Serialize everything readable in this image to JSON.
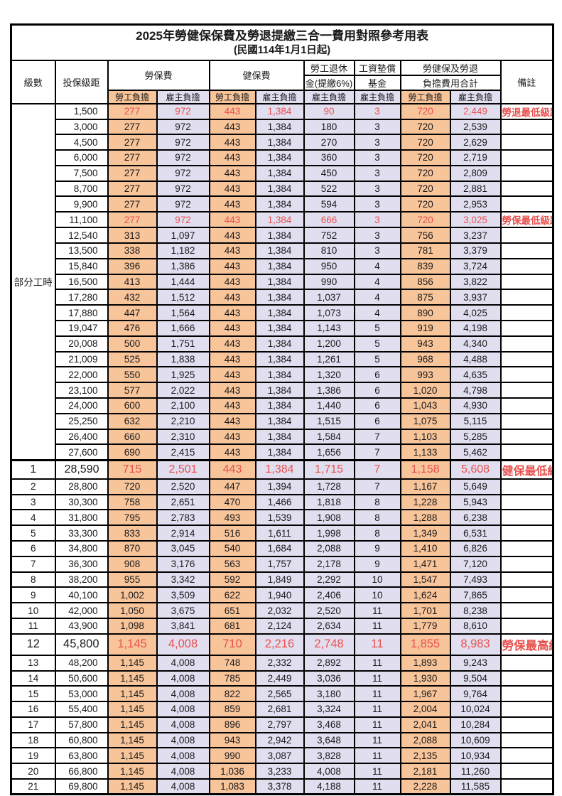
{
  "title": "2025年勞健保保費及勞退提繳三合一費用對照參考用表",
  "subtitle": "(民國114年1月1日起)",
  "colors": {
    "worker_bg": "#F8C49A",
    "employer_bg": "#E1DEF0",
    "highlight_text": "#E8514E",
    "border": "#000000"
  },
  "header": {
    "level": "級數",
    "bracket": "投保級距",
    "labor_ins": "勞保費",
    "health_ins": "健保費",
    "pension_line1": "勞工退休",
    "pension_line2": "金(提繳6%)",
    "wage_fund_line1": "工資墊償",
    "wage_fund_line2": "基金",
    "total_line1": "勞健保及勞退",
    "total_line2": "負擔費用合計",
    "remark": "備註",
    "worker": "勞工負擔",
    "employer": "雇主負擔"
  },
  "part_time_label": "部分工時",
  "part_time_rowspan": 23,
  "rows": [
    {
      "level": "",
      "bracket": "1,500",
      "li_w": "277",
      "li_e": "972",
      "hi_w": "443",
      "hi_e": "1,384",
      "pen_e": "90",
      "fund_e": "3",
      "tot_w": "720",
      "tot_e": "2,449",
      "remark": "勞退最低級距",
      "red": true,
      "big": 0
    },
    {
      "level": "",
      "bracket": "3,000",
      "li_w": "277",
      "li_e": "972",
      "hi_w": "443",
      "hi_e": "1,384",
      "pen_e": "180",
      "fund_e": "3",
      "tot_w": "720",
      "tot_e": "2,539",
      "remark": "",
      "red": false,
      "big": 0
    },
    {
      "level": "",
      "bracket": "4,500",
      "li_w": "277",
      "li_e": "972",
      "hi_w": "443",
      "hi_e": "1,384",
      "pen_e": "270",
      "fund_e": "3",
      "tot_w": "720",
      "tot_e": "2,629",
      "remark": "",
      "red": false,
      "big": 0
    },
    {
      "level": "",
      "bracket": "6,000",
      "li_w": "277",
      "li_e": "972",
      "hi_w": "443",
      "hi_e": "1,384",
      "pen_e": "360",
      "fund_e": "3",
      "tot_w": "720",
      "tot_e": "2,719",
      "remark": "",
      "red": false,
      "big": 0
    },
    {
      "level": "",
      "bracket": "7,500",
      "li_w": "277",
      "li_e": "972",
      "hi_w": "443",
      "hi_e": "1,384",
      "pen_e": "450",
      "fund_e": "3",
      "tot_w": "720",
      "tot_e": "2,809",
      "remark": "",
      "red": false,
      "big": 0
    },
    {
      "level": "",
      "bracket": "8,700",
      "li_w": "277",
      "li_e": "972",
      "hi_w": "443",
      "hi_e": "1,384",
      "pen_e": "522",
      "fund_e": "3",
      "tot_w": "720",
      "tot_e": "2,881",
      "remark": "",
      "red": false,
      "big": 0
    },
    {
      "level": "",
      "bracket": "9,900",
      "li_w": "277",
      "li_e": "972",
      "hi_w": "443",
      "hi_e": "1,384",
      "pen_e": "594",
      "fund_e": "3",
      "tot_w": "720",
      "tot_e": "2,953",
      "remark": "",
      "red": false,
      "big": 0
    },
    {
      "level": "",
      "bracket": "11,100",
      "li_w": "277",
      "li_e": "972",
      "hi_w": "443",
      "hi_e": "1,384",
      "pen_e": "666",
      "fund_e": "3",
      "tot_w": "720",
      "tot_e": "3,025",
      "remark": "勞保最低級距",
      "red": true,
      "big": 0
    },
    {
      "level": "",
      "bracket": "12,540",
      "li_w": "313",
      "li_e": "1,097",
      "hi_w": "443",
      "hi_e": "1,384",
      "pen_e": "752",
      "fund_e": "3",
      "tot_w": "756",
      "tot_e": "3,237",
      "remark": "",
      "red": false,
      "big": 0
    },
    {
      "level": "",
      "bracket": "13,500",
      "li_w": "338",
      "li_e": "1,182",
      "hi_w": "443",
      "hi_e": "1,384",
      "pen_e": "810",
      "fund_e": "3",
      "tot_w": "781",
      "tot_e": "3,379",
      "remark": "",
      "red": false,
      "big": 0
    },
    {
      "level": "",
      "bracket": "15,840",
      "li_w": "396",
      "li_e": "1,386",
      "hi_w": "443",
      "hi_e": "1,384",
      "pen_e": "950",
      "fund_e": "4",
      "tot_w": "839",
      "tot_e": "3,724",
      "remark": "",
      "red": false,
      "big": 0
    },
    {
      "level": "",
      "bracket": "16,500",
      "li_w": "413",
      "li_e": "1,444",
      "hi_w": "443",
      "hi_e": "1,384",
      "pen_e": "990",
      "fund_e": "4",
      "tot_w": "856",
      "tot_e": "3,822",
      "remark": "",
      "red": false,
      "big": 0
    },
    {
      "level": "",
      "bracket": "17,280",
      "li_w": "432",
      "li_e": "1,512",
      "hi_w": "443",
      "hi_e": "1,384",
      "pen_e": "1,037",
      "fund_e": "4",
      "tot_w": "875",
      "tot_e": "3,937",
      "remark": "",
      "red": false,
      "big": 0
    },
    {
      "level": "",
      "bracket": "17,880",
      "li_w": "447",
      "li_e": "1,564",
      "hi_w": "443",
      "hi_e": "1,384",
      "pen_e": "1,073",
      "fund_e": "4",
      "tot_w": "890",
      "tot_e": "4,025",
      "remark": "",
      "red": false,
      "big": 0
    },
    {
      "level": "",
      "bracket": "19,047",
      "li_w": "476",
      "li_e": "1,666",
      "hi_w": "443",
      "hi_e": "1,384",
      "pen_e": "1,143",
      "fund_e": "5",
      "tot_w": "919",
      "tot_e": "4,198",
      "remark": "",
      "red": false,
      "big": 0
    },
    {
      "level": "",
      "bracket": "20,008",
      "li_w": "500",
      "li_e": "1,751",
      "hi_w": "443",
      "hi_e": "1,384",
      "pen_e": "1,200",
      "fund_e": "5",
      "tot_w": "943",
      "tot_e": "4,340",
      "remark": "",
      "red": false,
      "big": 0
    },
    {
      "level": "",
      "bracket": "21,009",
      "li_w": "525",
      "li_e": "1,838",
      "hi_w": "443",
      "hi_e": "1,384",
      "pen_e": "1,261",
      "fund_e": "5",
      "tot_w": "968",
      "tot_e": "4,488",
      "remark": "",
      "red": false,
      "big": 0
    },
    {
      "level": "",
      "bracket": "22,000",
      "li_w": "550",
      "li_e": "1,925",
      "hi_w": "443",
      "hi_e": "1,384",
      "pen_e": "1,320",
      "fund_e": "6",
      "tot_w": "993",
      "tot_e": "4,635",
      "remark": "",
      "red": false,
      "big": 0
    },
    {
      "level": "",
      "bracket": "23,100",
      "li_w": "577",
      "li_e": "2,022",
      "hi_w": "443",
      "hi_e": "1,384",
      "pen_e": "1,386",
      "fund_e": "6",
      "tot_w": "1,020",
      "tot_e": "4,798",
      "remark": "",
      "red": false,
      "big": 0
    },
    {
      "level": "",
      "bracket": "24,000",
      "li_w": "600",
      "li_e": "2,100",
      "hi_w": "443",
      "hi_e": "1,384",
      "pen_e": "1,440",
      "fund_e": "6",
      "tot_w": "1,043",
      "tot_e": "4,930",
      "remark": "",
      "red": false,
      "big": 0
    },
    {
      "level": "",
      "bracket": "25,250",
      "li_w": "632",
      "li_e": "2,210",
      "hi_w": "443",
      "hi_e": "1,384",
      "pen_e": "1,515",
      "fund_e": "6",
      "tot_w": "1,075",
      "tot_e": "5,115",
      "remark": "",
      "red": false,
      "big": 0
    },
    {
      "level": "",
      "bracket": "26,400",
      "li_w": "660",
      "li_e": "2,310",
      "hi_w": "443",
      "hi_e": "1,384",
      "pen_e": "1,584",
      "fund_e": "7",
      "tot_w": "1,103",
      "tot_e": "5,285",
      "remark": "",
      "red": false,
      "big": 0
    },
    {
      "level": "",
      "bracket": "27,600",
      "li_w": "690",
      "li_e": "2,415",
      "hi_w": "443",
      "hi_e": "1,384",
      "pen_e": "1,656",
      "fund_e": "7",
      "tot_w": "1,133",
      "tot_e": "5,462",
      "remark": "",
      "red": false,
      "big": 0
    },
    {
      "level": "1",
      "bracket": "28,590",
      "li_w": "715",
      "li_e": "2,501",
      "hi_w": "443",
      "hi_e": "1,384",
      "pen_e": "1,715",
      "fund_e": "7",
      "tot_w": "1,158",
      "tot_e": "5,608",
      "remark": "健保最低級距",
      "red": true,
      "big": 1
    },
    {
      "level": "2",
      "bracket": "28,800",
      "li_w": "720",
      "li_e": "2,520",
      "hi_w": "447",
      "hi_e": "1,394",
      "pen_e": "1,728",
      "fund_e": "7",
      "tot_w": "1,167",
      "tot_e": "5,649",
      "remark": "",
      "red": false,
      "big": 0
    },
    {
      "level": "3",
      "bracket": "30,300",
      "li_w": "758",
      "li_e": "2,651",
      "hi_w": "470",
      "hi_e": "1,466",
      "pen_e": "1,818",
      "fund_e": "8",
      "tot_w": "1,228",
      "tot_e": "5,943",
      "remark": "",
      "red": false,
      "big": 0
    },
    {
      "level": "4",
      "bracket": "31,800",
      "li_w": "795",
      "li_e": "2,783",
      "hi_w": "493",
      "hi_e": "1,539",
      "pen_e": "1,908",
      "fund_e": "8",
      "tot_w": "1,288",
      "tot_e": "6,238",
      "remark": "",
      "red": false,
      "big": 0
    },
    {
      "level": "5",
      "bracket": "33,300",
      "li_w": "833",
      "li_e": "2,914",
      "hi_w": "516",
      "hi_e": "1,611",
      "pen_e": "1,998",
      "fund_e": "8",
      "tot_w": "1,349",
      "tot_e": "6,531",
      "remark": "",
      "red": false,
      "big": 0
    },
    {
      "level": "6",
      "bracket": "34,800",
      "li_w": "870",
      "li_e": "3,045",
      "hi_w": "540",
      "hi_e": "1,684",
      "pen_e": "2,088",
      "fund_e": "9",
      "tot_w": "1,410",
      "tot_e": "6,826",
      "remark": "",
      "red": false,
      "big": 0
    },
    {
      "level": "7",
      "bracket": "36,300",
      "li_w": "908",
      "li_e": "3,176",
      "hi_w": "563",
      "hi_e": "1,757",
      "pen_e": "2,178",
      "fund_e": "9",
      "tot_w": "1,471",
      "tot_e": "7,120",
      "remark": "",
      "red": false,
      "big": 0
    },
    {
      "level": "8",
      "bracket": "38,200",
      "li_w": "955",
      "li_e": "3,342",
      "hi_w": "592",
      "hi_e": "1,849",
      "pen_e": "2,292",
      "fund_e": "10",
      "tot_w": "1,547",
      "tot_e": "7,493",
      "remark": "",
      "red": false,
      "big": 0
    },
    {
      "level": "9",
      "bracket": "40,100",
      "li_w": "1,002",
      "li_e": "3,509",
      "hi_w": "622",
      "hi_e": "1,940",
      "pen_e": "2,406",
      "fund_e": "10",
      "tot_w": "1,624",
      "tot_e": "7,865",
      "remark": "",
      "red": false,
      "big": 0
    },
    {
      "level": "10",
      "bracket": "42,000",
      "li_w": "1,050",
      "li_e": "3,675",
      "hi_w": "651",
      "hi_e": "2,032",
      "pen_e": "2,520",
      "fund_e": "11",
      "tot_w": "1,701",
      "tot_e": "8,238",
      "remark": "",
      "red": false,
      "big": 0
    },
    {
      "level": "11",
      "bracket": "43,900",
      "li_w": "1,098",
      "li_e": "3,841",
      "hi_w": "681",
      "hi_e": "2,124",
      "pen_e": "2,634",
      "fund_e": "11",
      "tot_w": "1,779",
      "tot_e": "8,610",
      "remark": "",
      "red": false,
      "big": 0
    },
    {
      "level": "12",
      "bracket": "45,800",
      "li_w": "1,145",
      "li_e": "4,008",
      "hi_w": "710",
      "hi_e": "2,216",
      "pen_e": "2,748",
      "fund_e": "11",
      "tot_w": "1,855",
      "tot_e": "8,983",
      "remark": "勞保最高級距",
      "red": true,
      "big": 2
    },
    {
      "level": "13",
      "bracket": "48,200",
      "li_w": "1,145",
      "li_e": "4,008",
      "hi_w": "748",
      "hi_e": "2,332",
      "pen_e": "2,892",
      "fund_e": "11",
      "tot_w": "1,893",
      "tot_e": "9,243",
      "remark": "",
      "red": false,
      "big": 0
    },
    {
      "level": "14",
      "bracket": "50,600",
      "li_w": "1,145",
      "li_e": "4,008",
      "hi_w": "785",
      "hi_e": "2,449",
      "pen_e": "3,036",
      "fund_e": "11",
      "tot_w": "1,930",
      "tot_e": "9,504",
      "remark": "",
      "red": false,
      "big": 0
    },
    {
      "level": "15",
      "bracket": "53,000",
      "li_w": "1,145",
      "li_e": "4,008",
      "hi_w": "822",
      "hi_e": "2,565",
      "pen_e": "3,180",
      "fund_e": "11",
      "tot_w": "1,967",
      "tot_e": "9,764",
      "remark": "",
      "red": false,
      "big": 0
    },
    {
      "level": "16",
      "bracket": "55,400",
      "li_w": "1,145",
      "li_e": "4,008",
      "hi_w": "859",
      "hi_e": "2,681",
      "pen_e": "3,324",
      "fund_e": "11",
      "tot_w": "2,004",
      "tot_e": "10,024",
      "remark": "",
      "red": false,
      "big": 0
    },
    {
      "level": "17",
      "bracket": "57,800",
      "li_w": "1,145",
      "li_e": "4,008",
      "hi_w": "896",
      "hi_e": "2,797",
      "pen_e": "3,468",
      "fund_e": "11",
      "tot_w": "2,041",
      "tot_e": "10,284",
      "remark": "",
      "red": false,
      "big": 0
    },
    {
      "level": "18",
      "bracket": "60,800",
      "li_w": "1,145",
      "li_e": "4,008",
      "hi_w": "943",
      "hi_e": "2,942",
      "pen_e": "3,648",
      "fund_e": "11",
      "tot_w": "2,088",
      "tot_e": "10,609",
      "remark": "",
      "red": false,
      "big": 0
    },
    {
      "level": "19",
      "bracket": "63,800",
      "li_w": "1,145",
      "li_e": "4,008",
      "hi_w": "990",
      "hi_e": "3,087",
      "pen_e": "3,828",
      "fund_e": "11",
      "tot_w": "2,135",
      "tot_e": "10,934",
      "remark": "",
      "red": false,
      "big": 0
    },
    {
      "level": "20",
      "bracket": "66,800",
      "li_w": "1,145",
      "li_e": "4,008",
      "hi_w": "1,036",
      "hi_e": "3,233",
      "pen_e": "4,008",
      "fund_e": "11",
      "tot_w": "2,181",
      "tot_e": "11,260",
      "remark": "",
      "red": false,
      "big": 0
    },
    {
      "level": "21",
      "bracket": "69,800",
      "li_w": "1,145",
      "li_e": "4,008",
      "hi_w": "1,083",
      "hi_e": "3,378",
      "pen_e": "4,188",
      "fund_e": "11",
      "tot_w": "2,228",
      "tot_e": "11,585",
      "remark": "",
      "red": false,
      "big": 0
    }
  ]
}
